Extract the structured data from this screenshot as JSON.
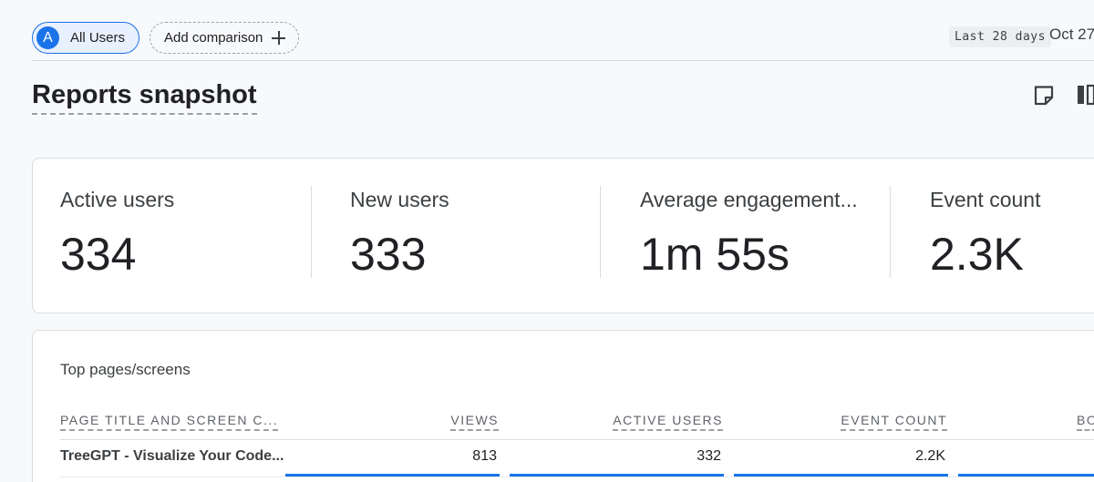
{
  "comparison_bar": {
    "primary_segment": {
      "avatar_letter": "A",
      "label": "All Users"
    },
    "add_comparison_label": "Add comparison",
    "date_range_badge": "Last 28 days",
    "date_start": "Oct 27"
  },
  "page": {
    "title": "Reports snapshot",
    "icons": [
      "note-icon",
      "compare-icon"
    ]
  },
  "metrics": [
    {
      "label": "Active users",
      "value": "334"
    },
    {
      "label": "New users",
      "value": "333"
    },
    {
      "label": "Average engagement...",
      "value": "1m 55s"
    },
    {
      "label": "Event count",
      "value": "2.3K"
    }
  ],
  "top_pages": {
    "title": "Top pages/screens",
    "columns": [
      "PAGE TITLE AND SCREEN C...",
      "VIEWS",
      "ACTIVE USERS",
      "EVENT COUNT",
      "BO"
    ],
    "rows": [
      {
        "title": "TreeGPT - Visualize Your Code...",
        "views": "813",
        "active_users": "332",
        "event_count": "2.2K"
      }
    ]
  },
  "colors": {
    "accent": "#1a73e8",
    "chip_background": "#e8f0fe",
    "card_border": "#dadce0",
    "page_background": "#f8f9fa"
  }
}
